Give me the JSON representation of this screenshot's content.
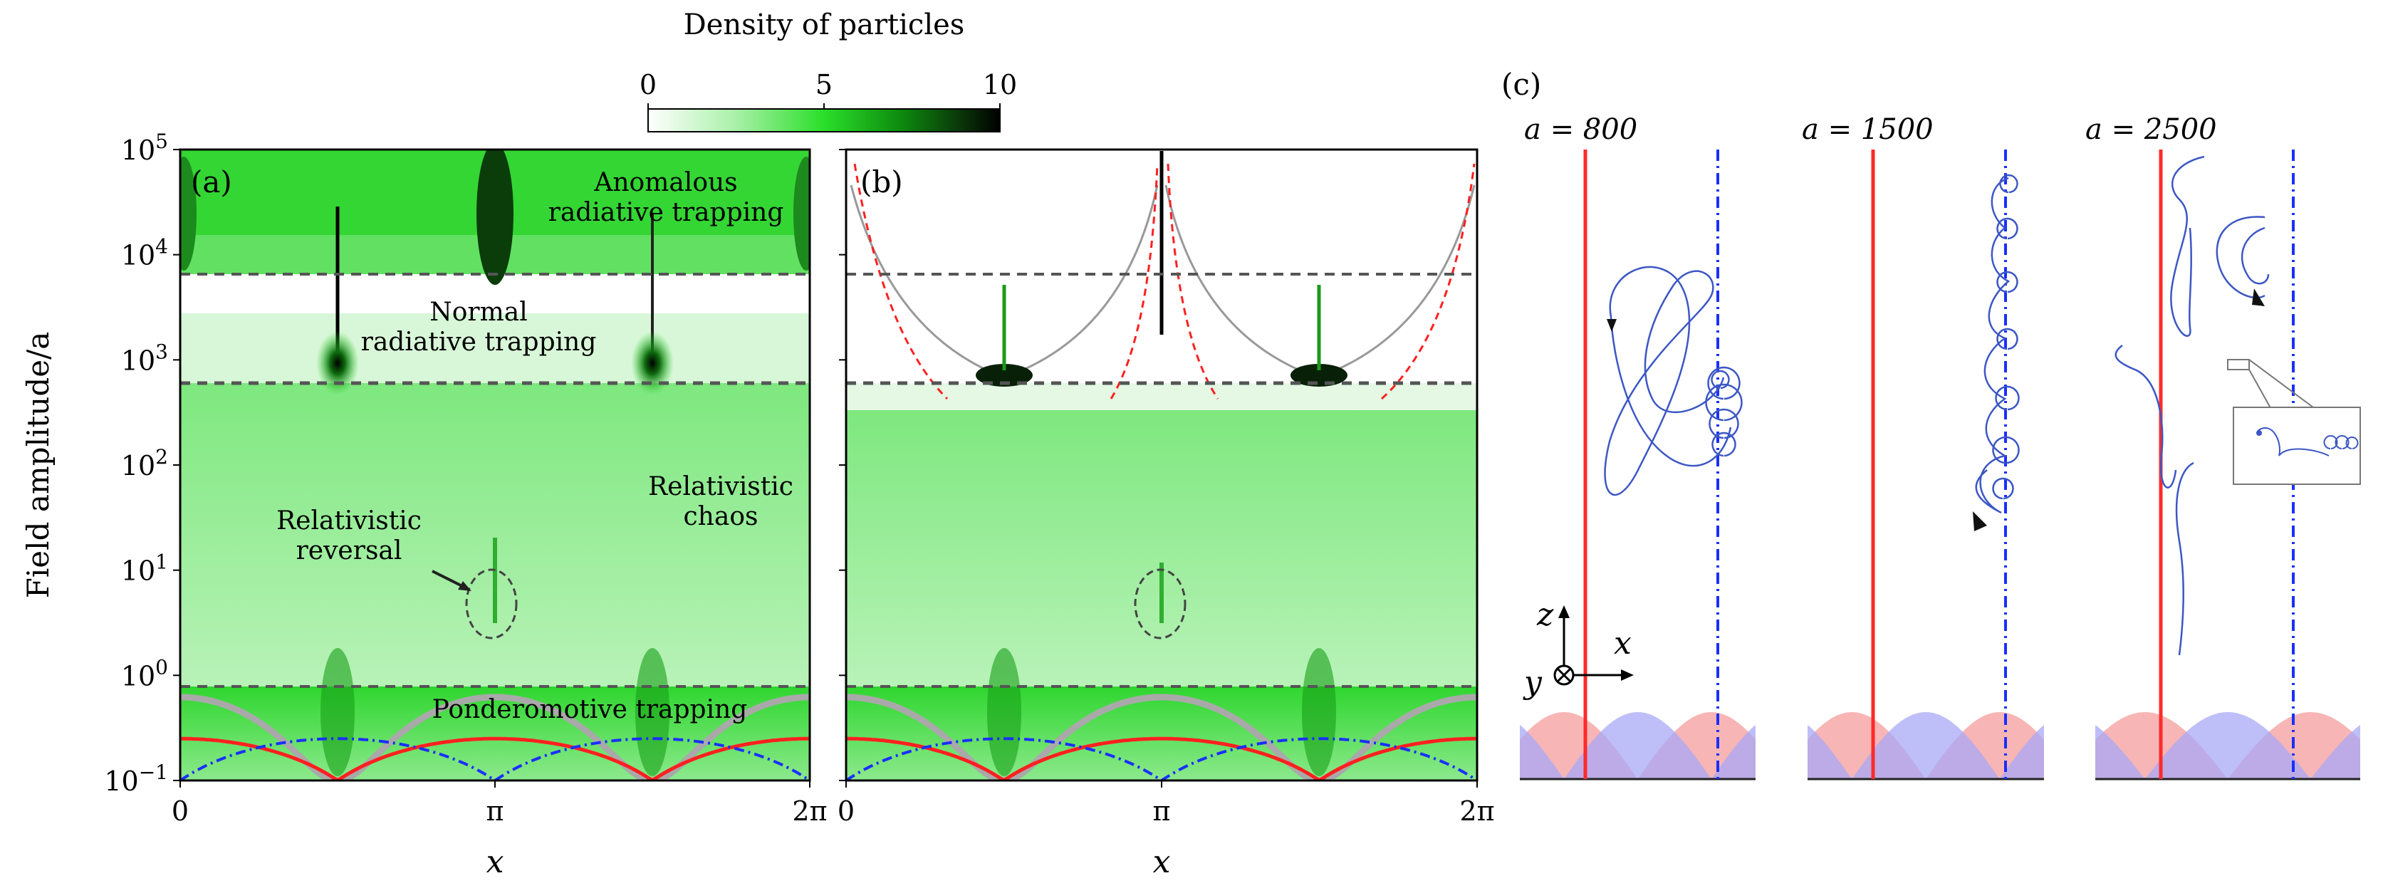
{
  "colorbar": {
    "title": "Density of particles",
    "ticks": [
      "0",
      "5",
      "10"
    ],
    "range": [
      0,
      10
    ]
  },
  "panels": {
    "a": {
      "label": "(a)"
    },
    "b": {
      "label": "(b)"
    },
    "c": {
      "label": "(c)"
    }
  },
  "axes": {
    "ylabel": "Field amplitude/a",
    "xlabel": "x",
    "xticks": [
      "0",
      "π",
      "2π"
    ],
    "yticks": [
      {
        "base": "10",
        "exp": "5"
      },
      {
        "base": "10",
        "exp": "4"
      },
      {
        "base": "10",
        "exp": "3"
      },
      {
        "base": "10",
        "exp": "2"
      },
      {
        "base": "10",
        "exp": "1"
      },
      {
        "base": "10",
        "exp": "0"
      },
      {
        "base": "10",
        "exp": "−1"
      }
    ]
  },
  "regions": {
    "anomalous_1": "Anomalous",
    "anomalous_2": "radiative trapping",
    "normal_1": "Normal",
    "normal_2": "radiative trapping",
    "chaos_1": "Relativistic",
    "chaos_2": "chaos",
    "reversal_1": "Relativistic",
    "reversal_2": "reversal",
    "ponderomotive": "Ponderomotive trapping"
  },
  "cases": [
    "a = 800",
    "a = 1500",
    "a = 2500"
  ],
  "axis_glyphs": {
    "z": "z",
    "x": "x",
    "y": "y"
  },
  "colors": {
    "density_low": "#ffffff",
    "density_mid": "#1fdc1f",
    "density_high": "#000000",
    "electric_field": "#ff2020",
    "magnetic_field": "#1a2fff",
    "gray_curve": "#a9a9a9",
    "threshold_line": "#555555",
    "trajectory": "#3c57c4",
    "fill_red": "#f7a8a8",
    "fill_blue": "#a8a8f7",
    "fill_overlap": "#a57cc5"
  },
  "chart_data": [
    {
      "type": "heatmap",
      "panel": "(a)",
      "x_range": [
        0,
        6.283
      ],
      "x_ticks": [
        "0",
        "π",
        "2π"
      ],
      "y_scale": "log",
      "y_range": [
        0.1,
        100000
      ],
      "ylabel": "Field amplitude/a",
      "xlabel": "x",
      "threshold_lines": [
        6500,
        570,
        0.8
      ],
      "hotspot_x": [
        1.571,
        4.712
      ],
      "overlay_curves": [
        {
          "color": "red",
          "style": "solid",
          "peak": 0.25,
          "zeros": [
            1.571,
            4.712
          ]
        },
        {
          "color": "blue",
          "style": "dash-dot",
          "peak": 0.25,
          "zeros": [
            0,
            3.142,
            6.283
          ]
        },
        {
          "color": "gray",
          "style": "solid",
          "peak": 0.62,
          "zeros": [
            1.571,
            4.712
          ]
        }
      ]
    },
    {
      "type": "heatmap",
      "panel": "(b)",
      "x_range": [
        0,
        6.283
      ],
      "x_ticks": [
        "0",
        "π",
        "2π"
      ],
      "y_scale": "log",
      "y_range": [
        0.1,
        100000
      ],
      "xlabel": "x",
      "threshold_lines": [
        6500,
        570,
        0.8
      ]
    }
  ]
}
